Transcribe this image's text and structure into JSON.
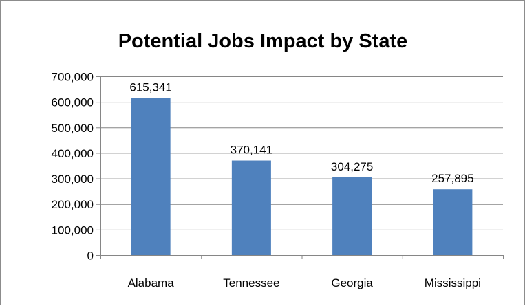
{
  "chart_data": {
    "type": "bar",
    "title": "Potential Jobs Impact by State",
    "categories": [
      "Alabama",
      "Tennessee",
      "Georgia",
      "Mississippi"
    ],
    "values": [
      615341,
      370141,
      304275,
      257895
    ],
    "data_labels": [
      "615,341",
      "370,141",
      "304,275",
      "257,895"
    ],
    "ylim": [
      0,
      700000
    ],
    "yticks": [
      0,
      100000,
      200000,
      300000,
      400000,
      500000,
      600000,
      700000
    ],
    "ytick_labels": [
      "0",
      "100,000",
      "200,000",
      "300,000",
      "400,000",
      "500,000",
      "600,000",
      "700,000"
    ],
    "xlabel": "",
    "ylabel": "",
    "grid": true,
    "legend": "none",
    "bar_color": "#4F81BD",
    "gridline_color": "#868686"
  }
}
